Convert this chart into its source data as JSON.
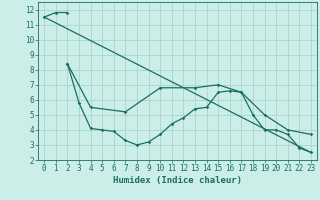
{
  "title": "",
  "xlabel": "Humidex (Indice chaleur)",
  "bg_color": "#cceee8",
  "grid_color": "#aad4cc",
  "line_color": "#1a6e62",
  "xlim": [
    -0.5,
    23.5
  ],
  "ylim": [
    2,
    12.5
  ],
  "yticks": [
    2,
    3,
    4,
    5,
    6,
    7,
    8,
    9,
    10,
    11,
    12
  ],
  "xticks": [
    0,
    1,
    2,
    3,
    4,
    5,
    6,
    7,
    8,
    9,
    10,
    11,
    12,
    13,
    14,
    15,
    16,
    17,
    18,
    19,
    20,
    21,
    22,
    23
  ],
  "series1_x": [
    0,
    1,
    2
  ],
  "series1_y": [
    11.5,
    11.8,
    11.8
  ],
  "series2_x": [
    2,
    3,
    4,
    5,
    6,
    7,
    8,
    9,
    10,
    11,
    12,
    13,
    14,
    15,
    16,
    17,
    18,
    19,
    20,
    21,
    22,
    23
  ],
  "series2_y": [
    8.4,
    5.8,
    4.1,
    4.0,
    3.9,
    3.3,
    3.0,
    3.2,
    3.7,
    4.4,
    4.8,
    5.4,
    5.5,
    6.5,
    6.6,
    6.5,
    5.0,
    4.0,
    4.0,
    3.7,
    2.8,
    2.5
  ],
  "series3_x": [
    0,
    23
  ],
  "series3_y": [
    11.5,
    2.5
  ],
  "series4_x": [
    2,
    4,
    7,
    10,
    13,
    15,
    17,
    19,
    21,
    23
  ],
  "series4_y": [
    8.4,
    5.5,
    5.2,
    6.8,
    6.8,
    7.0,
    6.5,
    5.0,
    4.0,
    3.7
  ]
}
